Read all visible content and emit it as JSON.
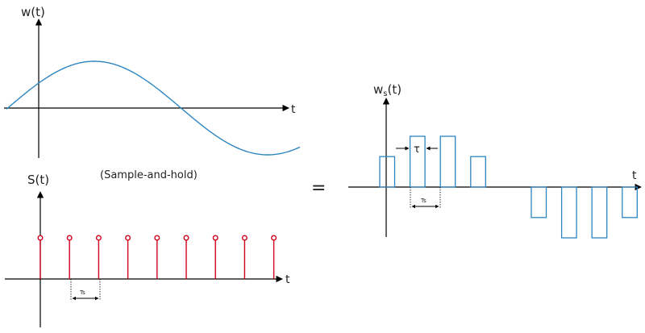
{
  "labels": {
    "w_axis": "w(t)",
    "s_axis": "S(t)",
    "ws_axis_main": "w",
    "ws_axis_sub": "s",
    "ws_axis_tail": "(t)",
    "t_top": "t",
    "t_bottom": "t",
    "t_right": "t",
    "sample_and_hold": "(Sample-and-hold)",
    "equals": "=",
    "tau": "τ",
    "ts_bottom": "Ts",
    "ts_right": "Ts"
  },
  "colors": {
    "sine": "#2e86c1",
    "impulse": "#d0021b",
    "pulse": "#2e86c1",
    "axis": "#000000"
  },
  "signal": {
    "sample_count": 9,
    "sample_levels": [
      0.6,
      0.6,
      0.6,
      0.6,
      0.6,
      0.6,
      0.6,
      0.6,
      0.6
    ],
    "held_pulses": [
      0.6,
      1.0,
      1.0,
      0.6,
      -0.6,
      -1.0,
      -1.0,
      -0.6
    ]
  }
}
